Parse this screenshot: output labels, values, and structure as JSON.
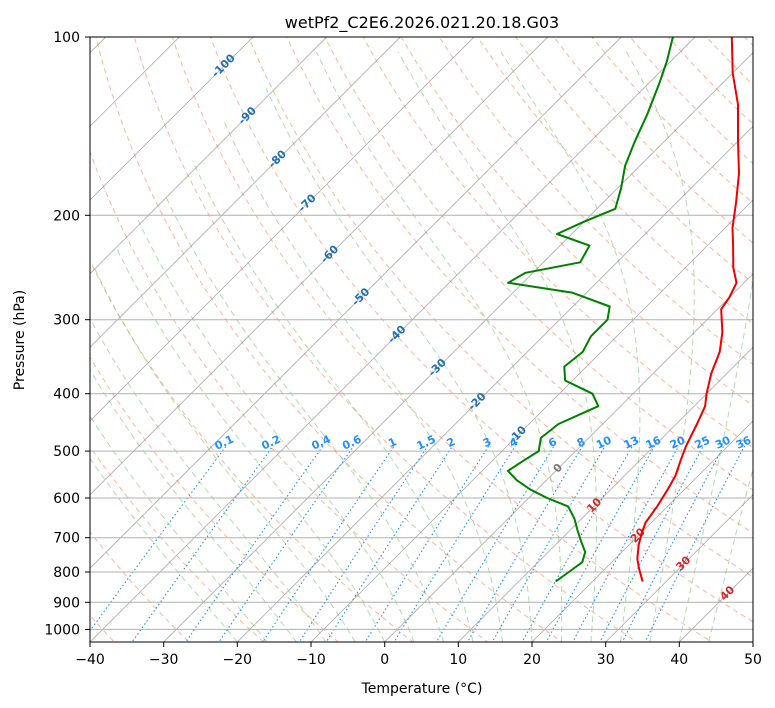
{
  "chart_data": {
    "type": "line",
    "title": "wetPf2_C2E6.2026.021.20.18.G03",
    "xlabel": "Temperature (°C)",
    "ylabel": "Pressure (hPa)",
    "xlim": [
      -40,
      50
    ],
    "ylim": [
      1050,
      100
    ],
    "y_scale": "log",
    "skew": "skew-T",
    "grid": true,
    "x_ticks": [
      -40,
      -30,
      -20,
      -10,
      0,
      10,
      20,
      30,
      40,
      50
    ],
    "y_ticks": [
      100,
      200,
      300,
      400,
      500,
      600,
      700,
      800,
      900,
      1000
    ],
    "colors": {
      "temperature": "#ee0000",
      "dewpoint": "#008000",
      "dry_adiabat": "#ff9a7a",
      "moist_adiabat": "#7cc47c",
      "isotherm": "#888888",
      "mixing_ratio": "#1e90ff",
      "isotherm_label": "#1f6fb4",
      "isotherm_label_warm": "#d62728"
    },
    "series": [
      {
        "key": "temperature",
        "points": [
          [
            830,
            26.8
          ],
          [
            790,
            24.6
          ],
          [
            760,
            23.0
          ],
          [
            720,
            21.3
          ],
          [
            690,
            20.2
          ],
          [
            660,
            19.2
          ],
          [
            620,
            18.6
          ],
          [
            580,
            17.7
          ],
          [
            550,
            16.9
          ],
          [
            520,
            15.6
          ],
          [
            490,
            14.3
          ],
          [
            450,
            12.8
          ],
          [
            420,
            11.5
          ],
          [
            400,
            10.0
          ],
          [
            370,
            7.9
          ],
          [
            340,
            6.1
          ],
          [
            315,
            3.8
          ],
          [
            300,
            2.0
          ],
          [
            288,
            0.5
          ],
          [
            275,
            0.0
          ],
          [
            260,
            -1.0
          ],
          [
            245,
            -3.5
          ],
          [
            225,
            -6.5
          ],
          [
            210,
            -9.0
          ],
          [
            190,
            -12.0
          ],
          [
            170,
            -15.5
          ],
          [
            150,
            -20.0
          ],
          [
            130,
            -25.0
          ],
          [
            115,
            -30.0
          ],
          [
            100,
            -35.0
          ]
        ]
      },
      {
        "key": "dewpoint",
        "points": [
          [
            830,
            15.0
          ],
          [
            800,
            15.5
          ],
          [
            770,
            16.0
          ],
          [
            740,
            15.0
          ],
          [
            710,
            13.0
          ],
          [
            680,
            11.0
          ],
          [
            650,
            9.0
          ],
          [
            620,
            6.5
          ],
          [
            600,
            2.5
          ],
          [
            580,
            -1.0
          ],
          [
            560,
            -4.0
          ],
          [
            540,
            -6.5
          ],
          [
            520,
            -5.8
          ],
          [
            500,
            -5.0
          ],
          [
            475,
            -6.5
          ],
          [
            450,
            -6.0
          ],
          [
            420,
            -3.0
          ],
          [
            400,
            -5.5
          ],
          [
            380,
            -11.0
          ],
          [
            360,
            -13.0
          ],
          [
            340,
            -12.5
          ],
          [
            320,
            -13.5
          ],
          [
            300,
            -13.5
          ],
          [
            285,
            -15.0
          ],
          [
            270,
            -22.0
          ],
          [
            260,
            -32.0
          ],
          [
            250,
            -31.0
          ],
          [
            240,
            -25.0
          ],
          [
            225,
            -26.0
          ],
          [
            215,
            -32.0
          ],
          [
            205,
            -30.0
          ],
          [
            195,
            -27.5
          ],
          [
            180,
            -29.5
          ],
          [
            165,
            -32.0
          ],
          [
            150,
            -34.0
          ],
          [
            135,
            -36.0
          ],
          [
            120,
            -38.5
          ],
          [
            110,
            -40.5
          ],
          [
            100,
            -43.0
          ]
        ]
      }
    ],
    "isotherm_labels": [
      "-100",
      "-90",
      "-80",
      "-70",
      "-60",
      "-50",
      "-40",
      "-30",
      "-20",
      "-10",
      "0",
      "10",
      "20",
      "30",
      "40"
    ],
    "mixing_ratio_labels": [
      "0.1",
      "0.2",
      "0.4",
      "0.6",
      "1",
      "1.5",
      "2",
      "3",
      "4",
      "6",
      "8",
      "10",
      "13",
      "16",
      "20",
      "25",
      "30",
      "36"
    ]
  }
}
